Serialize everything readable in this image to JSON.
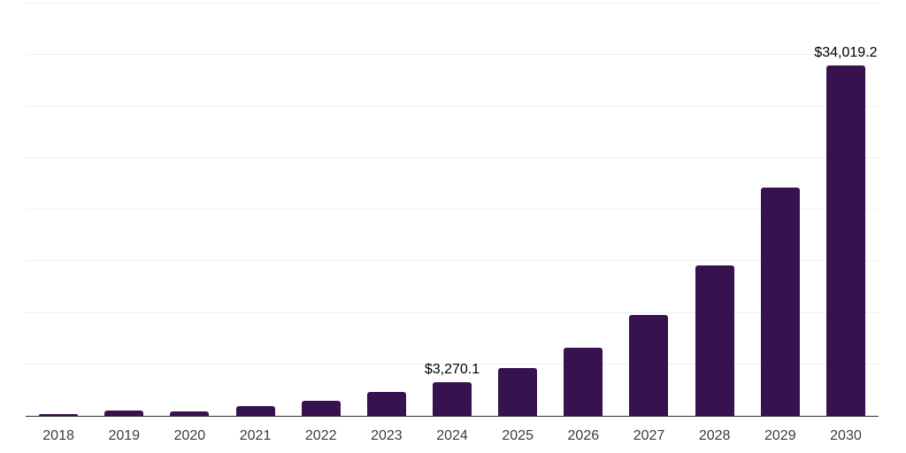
{
  "chart_data": {
    "type": "bar",
    "categories": [
      "2018",
      "2019",
      "2020",
      "2021",
      "2022",
      "2023",
      "2024",
      "2025",
      "2026",
      "2027",
      "2028",
      "2029",
      "2030"
    ],
    "values": [
      200,
      550,
      430,
      980,
      1460,
      2320,
      3270.1,
      4640,
      6650,
      9770,
      14580,
      22170,
      34019.2
    ],
    "annotations": [
      {
        "index": 6,
        "text": "$3,270.1"
      },
      {
        "index": 12,
        "text": "$34,019.2"
      }
    ],
    "xlabel": "",
    "ylabel": "",
    "ylim": [
      0,
      40000
    ],
    "gridline_step": 5000,
    "grid": true,
    "legend": false,
    "colors": {
      "bar": "#36124f",
      "gridline": "#f0f0f0",
      "axis": "#2b2b2b",
      "tick_label": "#3c3c3c",
      "annotation": "#000000"
    }
  }
}
